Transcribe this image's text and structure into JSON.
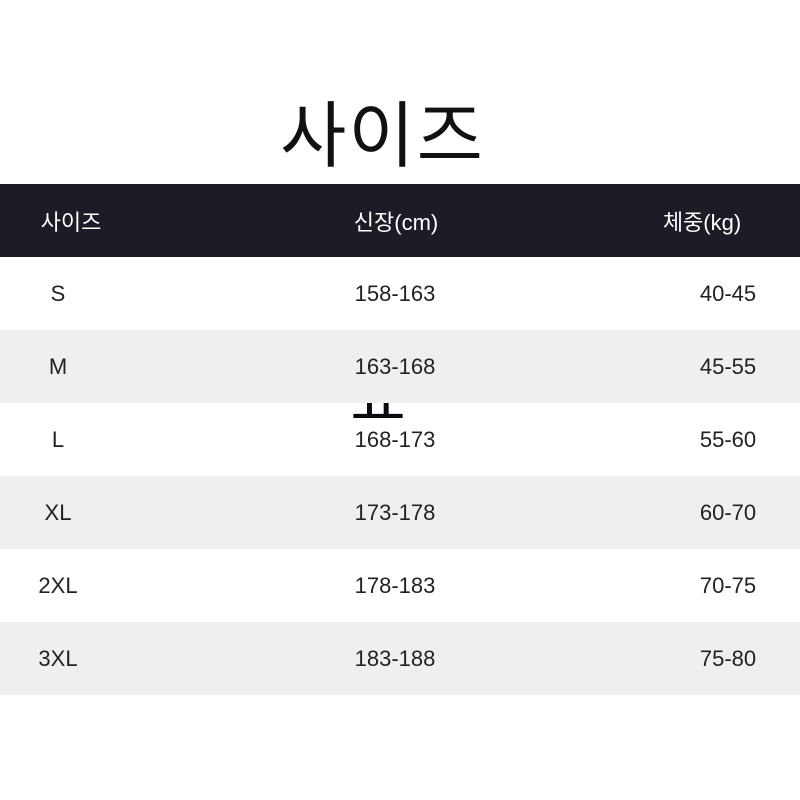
{
  "title": "사이즈",
  "title_cut_glyph": "표",
  "colors": {
    "header_bg": "#1c1c26",
    "alt_row_bg": "#efefef"
  },
  "table": {
    "headers": [
      "사이즈",
      "신장(cm)",
      "체중(kg)"
    ],
    "rows": [
      [
        "S",
        "158-163",
        "40-45"
      ],
      [
        "M",
        "163-168",
        "45-55"
      ],
      [
        "L",
        "168-173",
        "55-60"
      ],
      [
        "XL",
        "173-178",
        "60-70"
      ],
      [
        "2XL",
        "178-183",
        "70-75"
      ],
      [
        "3XL",
        "183-188",
        "75-80"
      ]
    ]
  }
}
